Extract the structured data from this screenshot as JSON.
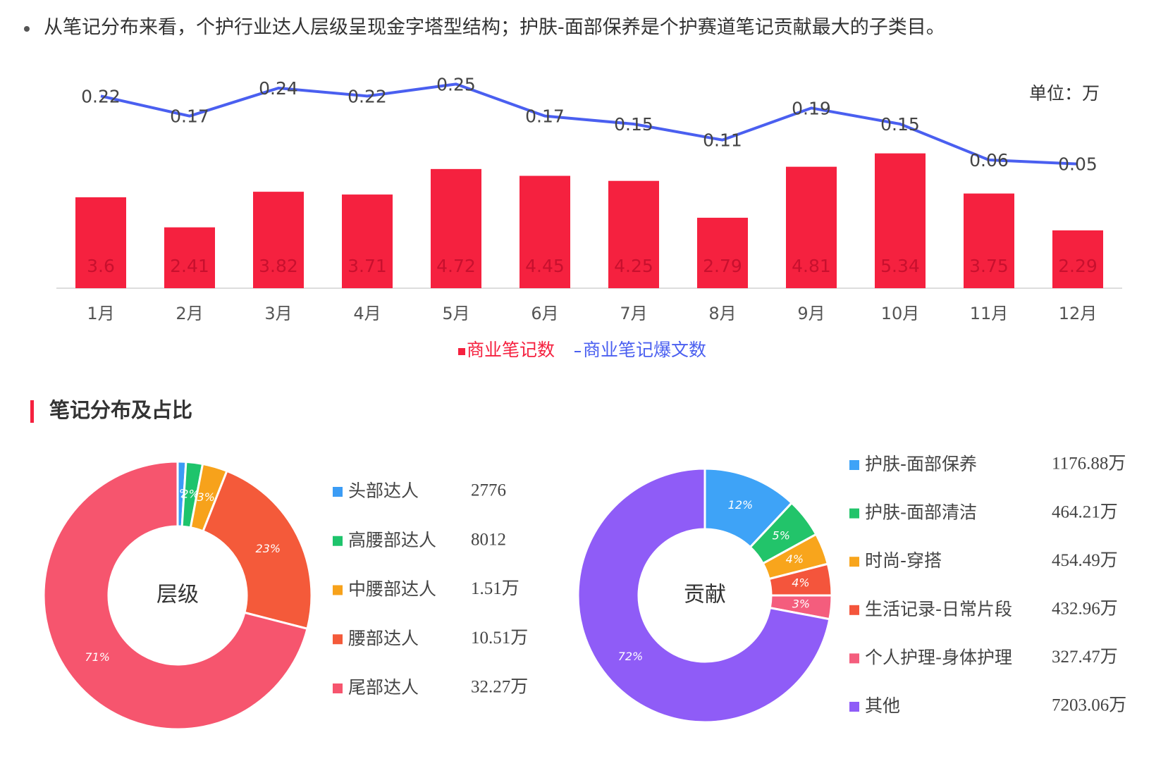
{
  "bullet": "从笔记分布来看，个护行业达人层级呈现金字塔型结构；护肤-面部保养是个护赛道笔记贡献最大的子类目。",
  "section_title": "笔记分布及占比",
  "chart_data": [
    {
      "type": "bar",
      "unit_label": "单位：万",
      "categories": [
        "1月",
        "2月",
        "3月",
        "4月",
        "5月",
        "6月",
        "7月",
        "8月",
        "9月",
        "10月",
        "11月",
        "12月"
      ],
      "ylim": [
        0,
        6
      ],
      "y2lim": [
        0,
        0.3
      ],
      "series": [
        {
          "name": "商业笔记数",
          "type": "bar",
          "color": "#f5213f",
          "values": [
            3.6,
            2.41,
            3.82,
            3.71,
            4.72,
            4.45,
            4.25,
            2.79,
            4.81,
            5.34,
            3.75,
            2.29
          ]
        },
        {
          "name": "商业笔记爆文数",
          "type": "line",
          "axis": "y2",
          "color": "#4a5ff0",
          "values": [
            0.22,
            0.17,
            0.24,
            0.22,
            0.25,
            0.17,
            0.15,
            0.11,
            0.19,
            0.15,
            0.06,
            0.05
          ]
        }
      ]
    },
    {
      "type": "pie",
      "center_label": "层级",
      "categories": [
        "头部达人",
        "高腰部达人",
        "中腰部达人",
        "腰部达人",
        "尾部达人"
      ],
      "values": [
        1,
        2,
        3,
        23,
        71
      ],
      "value_labels": [
        "1%",
        "2%",
        "3%",
        "23%",
        "71%"
      ],
      "colors": [
        "#3b9cf5",
        "#1ec46c",
        "#f7a21b",
        "#f45a3a",
        "#f6556e"
      ],
      "legend_values": [
        2776,
        8012,
        15100,
        105100,
        322700
      ],
      "legend_value_labels": [
        "2776",
        "8012",
        "1.51万",
        "10.51万",
        "32.27万"
      ]
    },
    {
      "type": "pie",
      "center_label": "贡献",
      "categories": [
        "护肤-面部保养",
        "护肤-面部清洁",
        "时尚-穿搭",
        "生活记录-日常片段",
        "个人护理-身体护理",
        "其他"
      ],
      "values": [
        12,
        5,
        4,
        4,
        3,
        72
      ],
      "value_labels": [
        "12%",
        "5%",
        "4%",
        "4%",
        "3%",
        "72%"
      ],
      "colors": [
        "#3ea3f7",
        "#22c46a",
        "#f8a51c",
        "#f4553c",
        "#f45d7d",
        "#8f5cf7"
      ],
      "legend_values": [
        1176.88,
        464.21,
        454.49,
        432.96,
        327.47,
        7203.06
      ],
      "legend_value_labels": [
        "1176.88万",
        "464.21万",
        "454.49万",
        "432.96万",
        "327.47万",
        "7203.06万"
      ]
    }
  ]
}
